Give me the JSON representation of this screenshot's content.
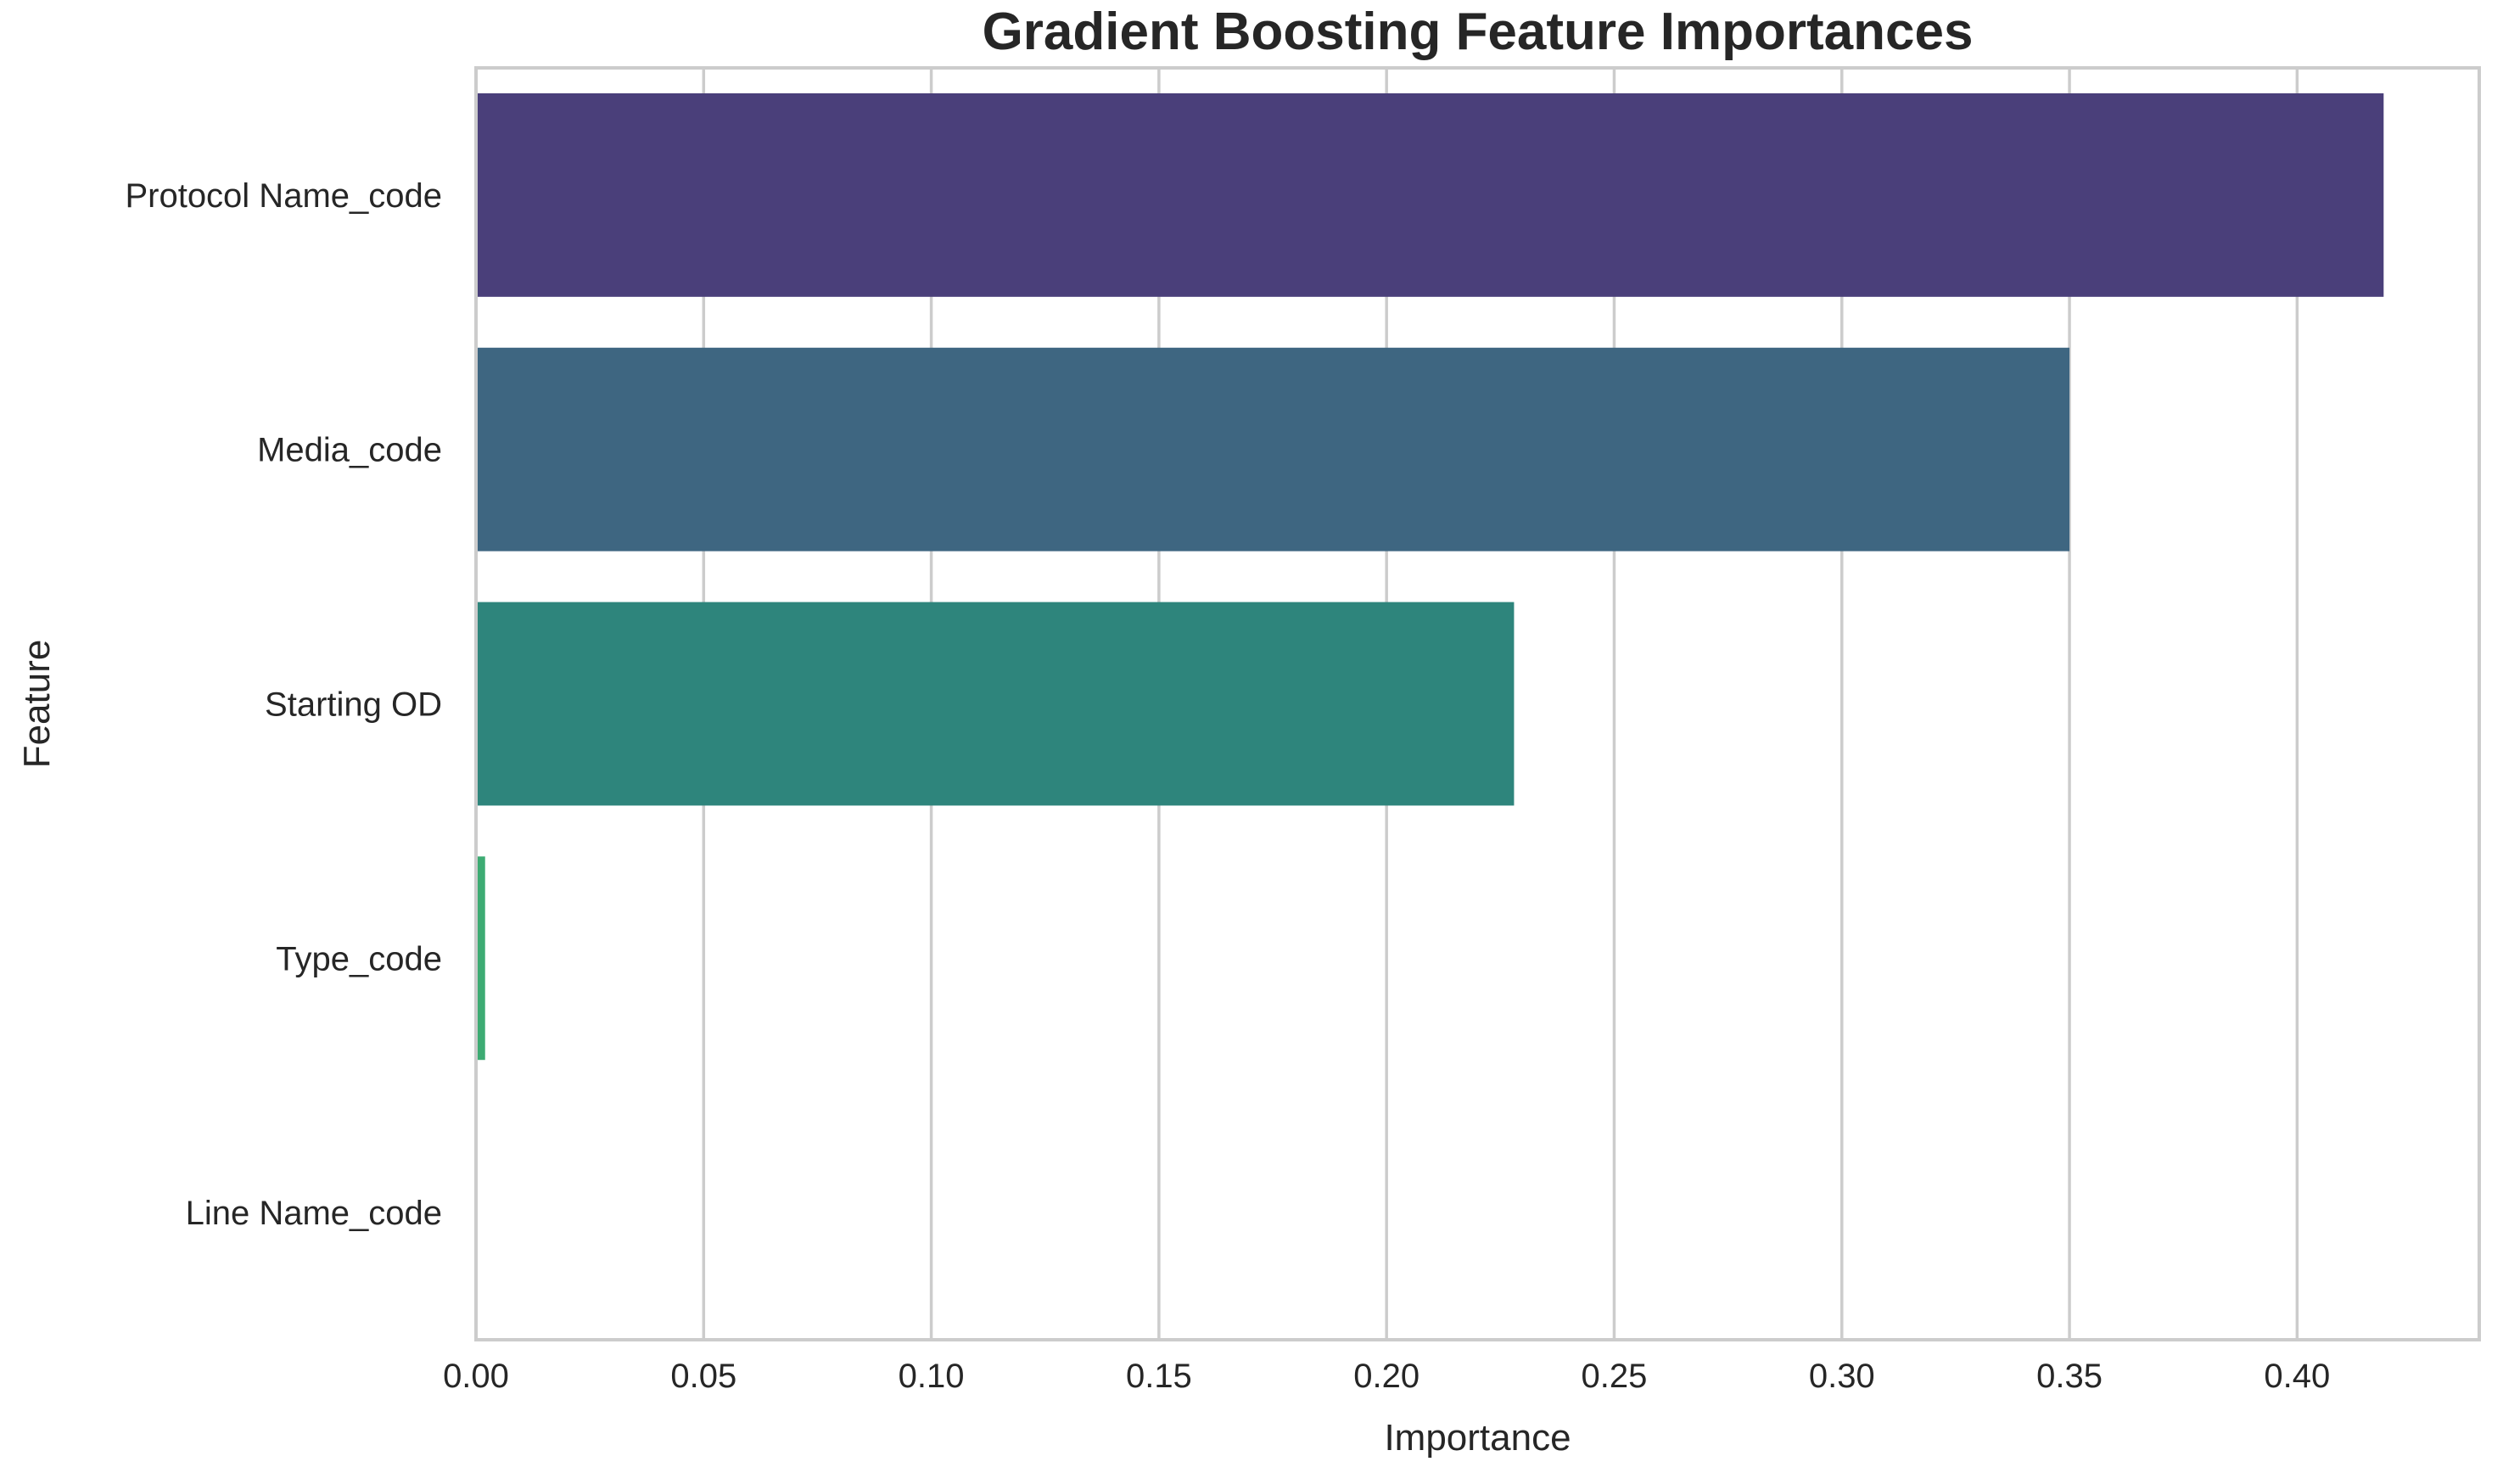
{
  "chart_data": {
    "type": "bar",
    "orientation": "horizontal",
    "title": "Gradient Boosting Feature Importances",
    "xlabel": "Importance",
    "ylabel": "Feature",
    "categories": [
      "Protocol Name_code",
      "Media_code",
      "Starting OD",
      "Type_code",
      "Line Name_code"
    ],
    "values": [
      0.419,
      0.35,
      0.228,
      0.002,
      0.0
    ],
    "colors": [
      "#4a3f7a",
      "#3e6681",
      "#2e857c",
      "#3dab73",
      "#7ad151"
    ],
    "xlim": [
      0,
      0.44
    ],
    "xticks": [
      0.0,
      0.05,
      0.1,
      0.15,
      0.2,
      0.25,
      0.3,
      0.35,
      0.4
    ],
    "xtick_labels": [
      "0.00",
      "0.05",
      "0.10",
      "0.15",
      "0.20",
      "0.25",
      "0.30",
      "0.35",
      "0.40"
    ],
    "grid": true,
    "legend": "none"
  }
}
